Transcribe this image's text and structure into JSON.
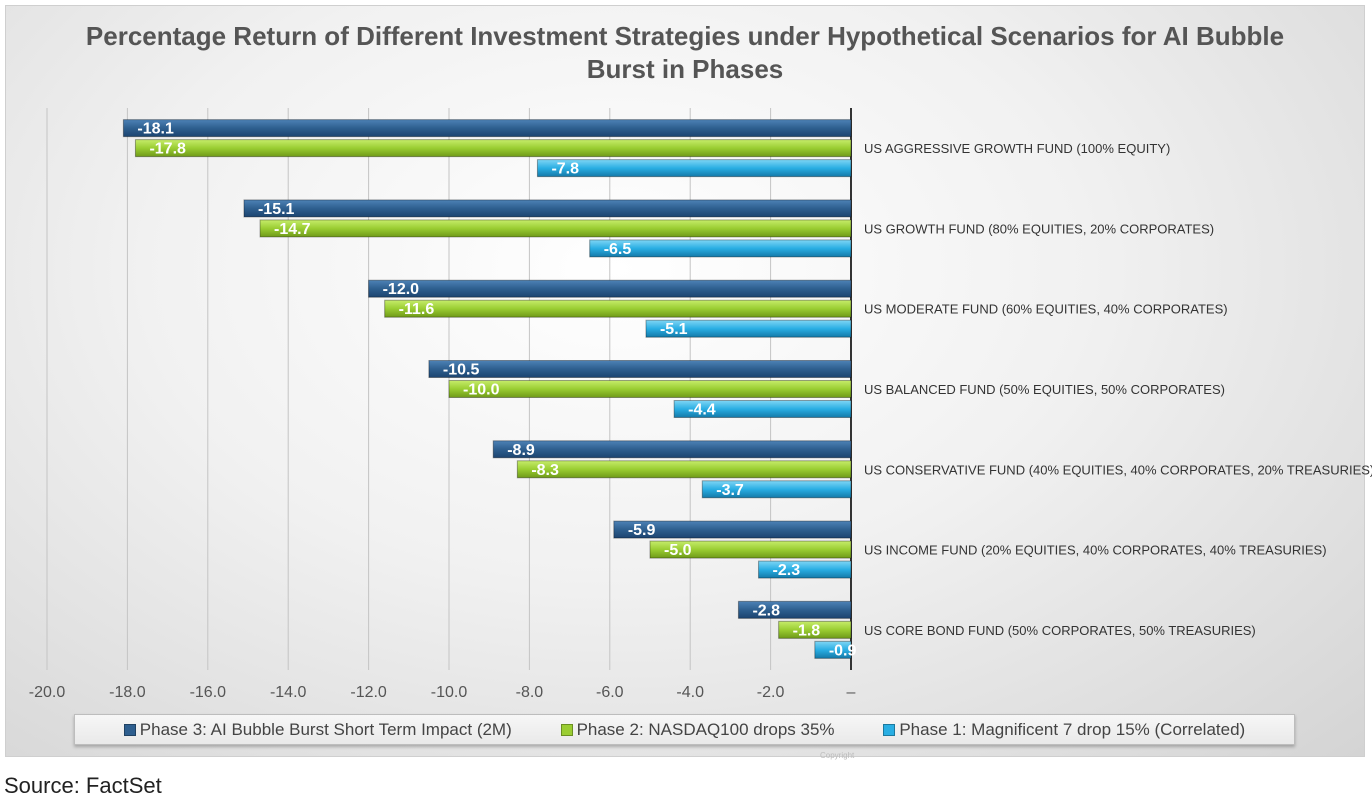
{
  "chart_data": {
    "type": "bar",
    "orientation": "horizontal",
    "title": "Percentage Return of Different Investment Strategies under Hypothetical Scenarios for AI Bubble Burst in Phases",
    "categories": [
      "US AGGRESSIVE GROWTH FUND (100% EQUITY)",
      "US GROWTH FUND (80% EQUITIES, 20% CORPORATES)",
      "US MODERATE FUND (60% EQUITIES, 40% CORPORATES)",
      "US BALANCED FUND (50% EQUITIES, 50% CORPORATES)",
      "US CONSERVATIVE FUND (40% EQUITIES, 40% CORPORATES, 20% TREASURIES)",
      "US INCOME FUND (20% EQUITIES, 40% CORPORATES, 40% TREASURIES)",
      "US CORE BOND FUND (50% CORPORATES, 50% TREASURIES)"
    ],
    "series": [
      {
        "name": "Phase 3: AI Bubble Burst Short Term Impact (2M)",
        "color": "#2e5f8f",
        "values": [
          -18.1,
          -15.1,
          -12.0,
          -10.5,
          -8.9,
          -5.9,
          -2.8
        ],
        "labels": [
          "-18.1",
          "-15.1",
          "-12.0",
          "-10.5",
          "-8.9",
          "-5.9",
          "-2.8"
        ]
      },
      {
        "name": "Phase 2: NASDAQ100 drops 35%",
        "color": "#9acd32",
        "values": [
          -17.8,
          -14.7,
          -11.6,
          -10.0,
          -8.3,
          -5.0,
          -1.8
        ],
        "labels": [
          "-17.8",
          "-14.7",
          "-11.6",
          "-10.0",
          "-8.3",
          "-5.0",
          "-1.8"
        ]
      },
      {
        "name": "Phase 1: Magnificent 7 drop 15% (Correlated)",
        "color": "#29aee3",
        "values": [
          -7.8,
          -6.5,
          -5.1,
          -4.4,
          -3.7,
          -2.3,
          -0.9
        ],
        "labels": [
          "-7.8",
          "-6.5",
          "-5.1",
          "-4.4",
          "-3.7",
          "-2.3",
          "-0.9"
        ]
      }
    ],
    "xlim": [
      -20,
      0
    ],
    "xticks": [
      -20,
      -18,
      -16,
      -14,
      -12,
      -10,
      -8,
      -6,
      -4,
      -2,
      0
    ],
    "xtick_labels": [
      "-20.0",
      "-18.0",
      "-16.0",
      "-14.0",
      "-12.0",
      "-10.0",
      "-8.0",
      "-6.0",
      "-4.0",
      "-2.0",
      "–"
    ],
    "grid": true,
    "legend_position": "bottom"
  },
  "source": "Source: FactSet",
  "copyright": "Copyright"
}
